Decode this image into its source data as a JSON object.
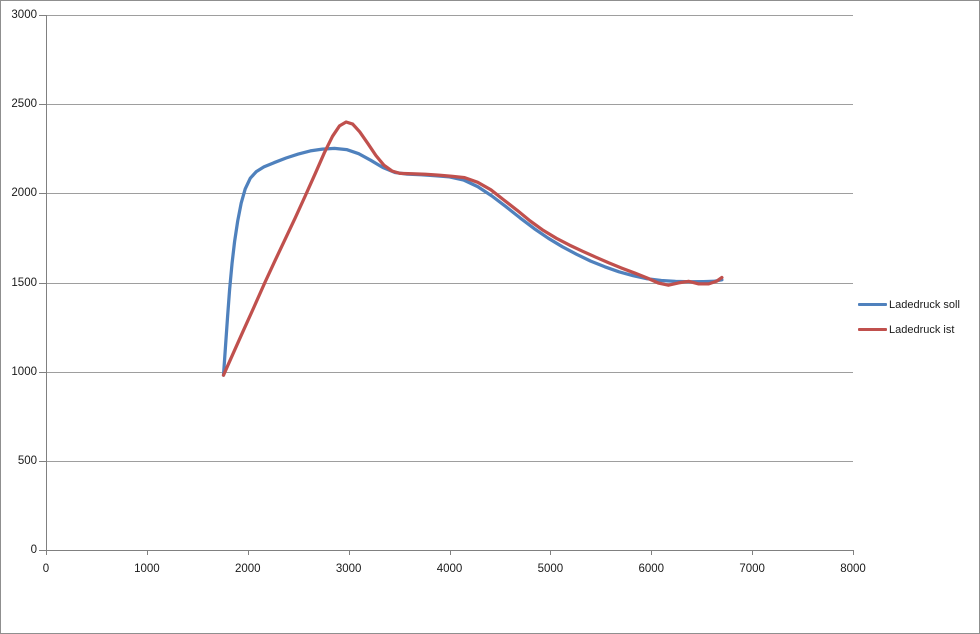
{
  "window": {
    "background": "#ffffff",
    "border_color": "#8f8f8f"
  },
  "chart_data": {
    "type": "line",
    "title": "",
    "xlabel": "",
    "ylabel": "",
    "grid": true,
    "legend_position": "right",
    "axis_color": "#808080",
    "gridline_color": "#9e9e9e",
    "label_color": "#1a1a1a",
    "x_axis": {
      "min": 0,
      "max": 8000,
      "ticks": [
        0,
        1000,
        2000,
        3000,
        4000,
        5000,
        6000,
        7000,
        8000
      ]
    },
    "y_axis": {
      "min": 0,
      "max": 3000,
      "ticks": [
        0,
        500,
        1000,
        1500,
        2000,
        2500,
        3000
      ]
    },
    "series": [
      {
        "name": "Ladedruck soll",
        "color": "#4F81BD",
        "points": [
          [
            1760,
            980
          ],
          [
            1780,
            1150
          ],
          [
            1800,
            1310
          ],
          [
            1820,
            1460
          ],
          [
            1845,
            1610
          ],
          [
            1870,
            1730
          ],
          [
            1900,
            1845
          ],
          [
            1935,
            1945
          ],
          [
            1975,
            2025
          ],
          [
            2025,
            2085
          ],
          [
            2085,
            2122
          ],
          [
            2160,
            2148
          ],
          [
            2260,
            2172
          ],
          [
            2380,
            2198
          ],
          [
            2500,
            2220
          ],
          [
            2620,
            2238
          ],
          [
            2740,
            2248
          ],
          [
            2860,
            2252
          ],
          [
            2980,
            2245
          ],
          [
            3100,
            2222
          ],
          [
            3220,
            2185
          ],
          [
            3340,
            2145
          ],
          [
            3460,
            2117
          ],
          [
            3580,
            2108
          ],
          [
            3720,
            2104
          ],
          [
            3860,
            2099
          ],
          [
            4000,
            2092
          ],
          [
            4140,
            2075
          ],
          [
            4280,
            2038
          ],
          [
            4420,
            1985
          ],
          [
            4560,
            1925
          ],
          [
            4700,
            1862
          ],
          [
            4840,
            1802
          ],
          [
            4980,
            1748
          ],
          [
            5120,
            1700
          ],
          [
            5260,
            1658
          ],
          [
            5400,
            1620
          ],
          [
            5540,
            1588
          ],
          [
            5680,
            1560
          ],
          [
            5820,
            1538
          ],
          [
            5960,
            1521
          ],
          [
            6100,
            1511
          ],
          [
            6240,
            1506
          ],
          [
            6380,
            1504
          ],
          [
            6520,
            1505
          ],
          [
            6620,
            1507
          ],
          [
            6700,
            1515
          ]
        ]
      },
      {
        "name": "Ladedruck ist",
        "color": "#C0504D",
        "points": [
          [
            1760,
            980
          ],
          [
            1850,
            1095
          ],
          [
            1950,
            1222
          ],
          [
            2060,
            1360
          ],
          [
            2170,
            1500
          ],
          [
            2270,
            1622
          ],
          [
            2370,
            1742
          ],
          [
            2470,
            1862
          ],
          [
            2570,
            1985
          ],
          [
            2670,
            2112
          ],
          [
            2760,
            2228
          ],
          [
            2840,
            2320
          ],
          [
            2910,
            2378
          ],
          [
            2975,
            2400
          ],
          [
            3040,
            2388
          ],
          [
            3110,
            2345
          ],
          [
            3190,
            2280
          ],
          [
            3270,
            2212
          ],
          [
            3350,
            2158
          ],
          [
            3430,
            2125
          ],
          [
            3510,
            2112
          ],
          [
            3630,
            2110
          ],
          [
            3760,
            2107
          ],
          [
            3890,
            2102
          ],
          [
            4020,
            2096
          ],
          [
            4150,
            2088
          ],
          [
            4280,
            2062
          ],
          [
            4410,
            2020
          ],
          [
            4540,
            1962
          ],
          [
            4670,
            1905
          ],
          [
            4800,
            1845
          ],
          [
            4930,
            1792
          ],
          [
            5060,
            1748
          ],
          [
            5190,
            1710
          ],
          [
            5320,
            1675
          ],
          [
            5450,
            1642
          ],
          [
            5580,
            1610
          ],
          [
            5710,
            1580
          ],
          [
            5840,
            1552
          ],
          [
            5960,
            1525
          ],
          [
            6070,
            1497
          ],
          [
            6170,
            1485
          ],
          [
            6270,
            1498
          ],
          [
            6370,
            1507
          ],
          [
            6470,
            1492
          ],
          [
            6570,
            1492
          ],
          [
            6650,
            1508
          ],
          [
            6700,
            1528
          ]
        ]
      }
    ]
  }
}
